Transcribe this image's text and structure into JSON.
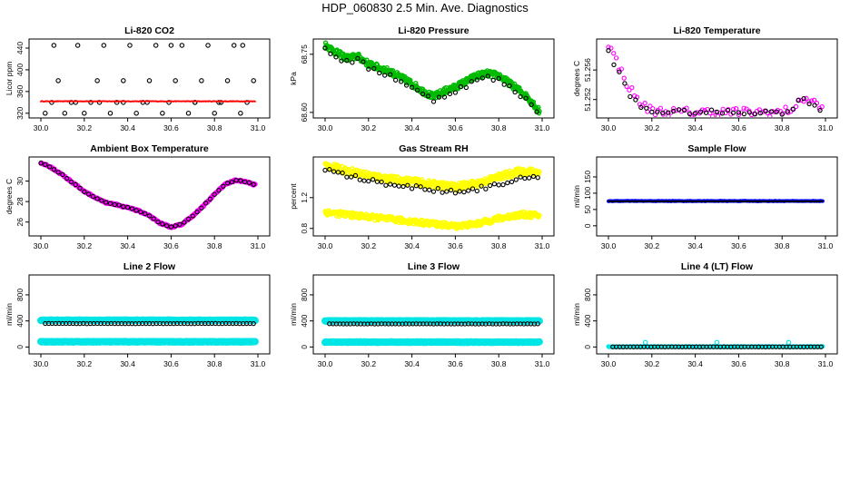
{
  "page_title": "HDP_060830  2.5 Min. Ave. Diagnostics",
  "chart_data": [
    {
      "type": "scatter",
      "title": "Li-820 CO2",
      "ylabel": "Licor ppm",
      "xlim": [
        30.0,
        31.0
      ],
      "ylim": [
        318,
        450
      ],
      "xticks": [
        "30.0",
        "30.2",
        "30.4",
        "30.6",
        "30.8",
        "31.0"
      ],
      "yticks": [
        "320",
        "360",
        "400",
        "440"
      ],
      "yrot": false,
      "series": [
        {
          "name": "raw",
          "color": "#000000",
          "kind": "open",
          "x": [
            30.02,
            30.05,
            30.08,
            30.11,
            30.14,
            30.17,
            30.2,
            30.23,
            30.26,
            30.29,
            30.32,
            30.35,
            30.38,
            30.41,
            30.44,
            30.47,
            30.5,
            30.53,
            30.56,
            30.59,
            30.62,
            30.65,
            30.68,
            30.71,
            30.74,
            30.77,
            30.8,
            30.83,
            30.86,
            30.89,
            30.92,
            30.95,
            30.98,
            30.06,
            30.16,
            30.27,
            30.38,
            30.49,
            30.6,
            30.71,
            30.82,
            30.93
          ],
          "y": [
            320,
            340,
            380,
            320,
            340,
            445,
            320,
            340,
            380,
            445,
            320,
            340,
            380,
            445,
            320,
            340,
            380,
            445,
            320,
            340,
            380,
            445,
            320,
            340,
            380,
            445,
            320,
            340,
            380,
            445,
            320,
            340,
            380,
            445,
            340,
            340,
            340,
            340,
            445,
            340,
            340,
            445
          ]
        },
        {
          "name": "mean",
          "color": "#ff0000",
          "kind": "band",
          "x": [
            30.0,
            30.99
          ],
          "y": [
            342,
            342
          ],
          "spread": 2
        }
      ]
    },
    {
      "type": "scatter",
      "title": "Li-820 Pressure",
      "ylabel": "kPa",
      "xlim": [
        30.0,
        31.0
      ],
      "ylim": [
        68.595,
        68.78
      ],
      "xticks": [
        "30.0",
        "30.2",
        "30.4",
        "30.6",
        "30.8",
        "31.0"
      ],
      "yticks": [
        "68.60",
        "68.75"
      ],
      "yrot": true,
      "series": [
        {
          "name": "fast",
          "color": "#00bb00",
          "kind": "trace",
          "noise": 0.008,
          "x": [
            30.0,
            30.05,
            30.1,
            30.15,
            30.2,
            30.25,
            30.3,
            30.35,
            30.4,
            30.45,
            30.5,
            30.55,
            30.6,
            30.65,
            30.7,
            30.75,
            30.8,
            30.85,
            30.9,
            30.95,
            30.99
          ],
          "y": [
            68.775,
            68.755,
            68.74,
            68.745,
            68.725,
            68.715,
            68.705,
            68.69,
            68.675,
            68.655,
            68.64,
            68.655,
            68.665,
            68.68,
            68.695,
            68.7,
            68.695,
            68.675,
            68.655,
            68.63,
            68.6
          ]
        },
        {
          "name": "avg",
          "color": "#000000",
          "kind": "openline",
          "noise": 0.006,
          "step": 0.025,
          "x": [
            30.0,
            30.05,
            30.1,
            30.15,
            30.2,
            30.25,
            30.3,
            30.35,
            30.4,
            30.45,
            30.5,
            30.55,
            30.6,
            30.65,
            30.7,
            30.75,
            30.8,
            30.85,
            30.9,
            30.95,
            30.99
          ],
          "y": [
            68.765,
            68.745,
            68.73,
            68.735,
            68.715,
            68.705,
            68.695,
            68.68,
            68.665,
            68.645,
            68.632,
            68.645,
            68.655,
            68.67,
            68.683,
            68.69,
            68.683,
            68.665,
            68.645,
            68.622,
            68.598
          ]
        }
      ]
    },
    {
      "type": "scatter",
      "title": "Li-820 Temperature",
      "ylabel": "degrees C",
      "xlim": [
        30.0,
        31.0
      ],
      "ylim": [
        51.25,
        51.2597
      ],
      "xticks": [
        "30.0",
        "30.2",
        "30.4",
        "30.6",
        "30.8",
        "31.0"
      ],
      "yticks": [
        "51.252",
        "51.256"
      ],
      "yrot": true,
      "series": [
        {
          "name": "fast",
          "color": "#ff00ff",
          "kind": "openline",
          "noise": 0.0006,
          "step": 0.012,
          "x": [
            30.0,
            30.04,
            30.08,
            30.12,
            30.16,
            30.2,
            30.3,
            30.4,
            30.5,
            30.6,
            30.7,
            30.8,
            30.84,
            30.87,
            30.9,
            30.93,
            30.96,
            30.99
          ],
          "y": [
            51.2595,
            51.257,
            51.2545,
            51.2525,
            51.2512,
            51.2505,
            51.2503,
            51.2503,
            51.2503,
            51.2503,
            51.2503,
            51.2503,
            51.2507,
            51.2512,
            51.2522,
            51.252,
            51.2513,
            51.2506
          ]
        },
        {
          "name": "avg",
          "color": "#000000",
          "kind": "openline",
          "noise": 0.0003,
          "step": 0.025,
          "x": [
            30.0,
            30.05,
            30.1,
            30.15,
            30.2,
            30.4,
            30.6,
            30.8,
            30.85,
            30.88,
            30.91,
            30.95,
            30.99
          ],
          "y": [
            51.2585,
            51.2555,
            51.2525,
            51.251,
            51.2504,
            51.2503,
            51.2503,
            51.2503,
            51.2505,
            51.2525,
            51.252,
            51.251,
            51.2504
          ]
        }
      ]
    },
    {
      "type": "scatter",
      "title": "Ambient Box Temperature",
      "ylabel": "degrees C",
      "xlim": [
        30.0,
        31.0
      ],
      "ylim": [
        25.0,
        32.0
      ],
      "xticks": [
        "30.0",
        "30.2",
        "30.4",
        "30.6",
        "30.8",
        "31.0"
      ],
      "yticks": [
        "26",
        "28",
        "30"
      ],
      "yrot": true,
      "series": [
        {
          "name": "fast",
          "color": "#ff00ff",
          "kind": "trace",
          "noise": 0.08,
          "x": [
            30.0,
            30.05,
            30.1,
            30.15,
            30.2,
            30.25,
            30.3,
            30.35,
            30.4,
            30.45,
            30.5,
            30.55,
            30.6,
            30.65,
            30.7,
            30.75,
            30.8,
            30.85,
            30.9,
            30.95,
            30.99
          ],
          "y": [
            31.8,
            31.3,
            30.6,
            29.8,
            29.0,
            28.4,
            27.9,
            27.7,
            27.4,
            27.1,
            26.6,
            25.9,
            25.5,
            25.8,
            26.6,
            27.6,
            28.7,
            29.7,
            30.1,
            29.9,
            29.6
          ]
        },
        {
          "name": "avg",
          "color": "#000000",
          "kind": "openline",
          "noise": 0.04,
          "step": 0.02,
          "x": [
            30.0,
            30.05,
            30.1,
            30.15,
            30.2,
            30.25,
            30.3,
            30.35,
            30.4,
            30.45,
            30.5,
            30.55,
            30.6,
            30.65,
            30.7,
            30.75,
            30.8,
            30.85,
            30.9,
            30.95,
            30.99
          ],
          "y": [
            31.8,
            31.3,
            30.6,
            29.8,
            29.0,
            28.4,
            27.9,
            27.7,
            27.4,
            27.1,
            26.6,
            25.9,
            25.5,
            25.8,
            26.6,
            27.6,
            28.7,
            29.7,
            30.1,
            29.9,
            29.6
          ]
        }
      ]
    },
    {
      "type": "scatter",
      "title": "Gas Stream RH",
      "ylabel": "percent",
      "xlim": [
        30.0,
        31.0
      ],
      "ylim": [
        0.75,
        1.68
      ],
      "xticks": [
        "30.0",
        "30.2",
        "30.4",
        "30.6",
        "30.8",
        "31.0"
      ],
      "yticks": [
        "0.8",
        "1.2"
      ],
      "yrot": true,
      "series": [
        {
          "name": "fast-high",
          "color": "#ffff00",
          "kind": "trace",
          "noise": 0.045,
          "x": [
            30.0,
            30.1,
            30.2,
            30.3,
            30.4,
            30.5,
            30.6,
            30.7,
            30.8,
            30.9,
            30.99
          ],
          "y": [
            1.62,
            1.55,
            1.49,
            1.44,
            1.41,
            1.37,
            1.34,
            1.38,
            1.47,
            1.54,
            1.53
          ]
        },
        {
          "name": "fast-low",
          "color": "#ffff00",
          "kind": "trace",
          "noise": 0.035,
          "x": [
            30.0,
            30.1,
            30.2,
            30.3,
            30.4,
            30.5,
            30.6,
            30.7,
            30.8,
            30.9,
            30.99
          ],
          "y": [
            1.01,
            0.98,
            0.95,
            0.92,
            0.89,
            0.86,
            0.83,
            0.86,
            0.93,
            0.98,
            0.97
          ]
        },
        {
          "name": "avg",
          "color": "#000000",
          "kind": "openline",
          "noise": 0.03,
          "step": 0.02,
          "x": [
            30.0,
            30.1,
            30.2,
            30.3,
            30.4,
            30.5,
            30.6,
            30.7,
            30.8,
            30.9,
            30.99
          ],
          "y": [
            1.56,
            1.49,
            1.42,
            1.38,
            1.34,
            1.3,
            1.28,
            1.31,
            1.38,
            1.44,
            1.45
          ]
        }
      ]
    },
    {
      "type": "scatter",
      "title": "Sample Flow",
      "ylabel": "ml/min",
      "xlim": [
        30.0,
        31.0
      ],
      "ylim": [
        -20,
        200
      ],
      "xticks": [
        "30.0",
        "30.2",
        "30.4",
        "30.6",
        "30.8",
        "31.0"
      ],
      "yticks": [
        "0",
        "50",
        "100",
        "150"
      ],
      "yrot": true,
      "series": [
        {
          "name": "fast",
          "color": "#0000ff",
          "kind": "band",
          "x": [
            30.0,
            30.99
          ],
          "y": [
            76,
            76
          ],
          "spread": 4
        },
        {
          "name": "avg",
          "color": "#000000",
          "kind": "band",
          "x": [
            30.0,
            30.99
          ],
          "y": [
            75,
            75
          ],
          "spread": 2
        }
      ]
    },
    {
      "type": "scatter",
      "title": "Line 2 Flow",
      "ylabel": "ml/min",
      "xlim": [
        30.0,
        31.0
      ],
      "ylim": [
        -50,
        1050
      ],
      "xticks": [
        "30.0",
        "30.2",
        "30.4",
        "30.6",
        "30.8",
        "31.0"
      ],
      "yticks": [
        "0",
        "400",
        "800"
      ],
      "yrot": true,
      "series": [
        {
          "name": "fast-high",
          "color": "#00e5e5",
          "kind": "band",
          "x": [
            30.0,
            30.99
          ],
          "y": [
            410,
            410
          ],
          "spread": 8
        },
        {
          "name": "fast-low",
          "color": "#00e5e5",
          "kind": "band",
          "x": [
            30.0,
            30.99
          ],
          "y": [
            80,
            80
          ],
          "spread": 8
        },
        {
          "name": "avg",
          "color": "#000000",
          "kind": "openline",
          "noise": 2,
          "step": 0.016,
          "x": [
            30.02,
            30.99
          ],
          "y": [
            360,
            360
          ]
        }
      ]
    },
    {
      "type": "scatter",
      "title": "Line 3 Flow",
      "ylabel": "ml/min",
      "xlim": [
        30.0,
        31.0
      ],
      "ylim": [
        -50,
        1050
      ],
      "xticks": [
        "30.0",
        "30.2",
        "30.4",
        "30.6",
        "30.8",
        "31.0"
      ],
      "yticks": [
        "0",
        "400",
        "800"
      ],
      "yrot": true,
      "series": [
        {
          "name": "fast-high",
          "color": "#00e5e5",
          "kind": "band",
          "x": [
            30.0,
            30.99
          ],
          "y": [
            400,
            400
          ],
          "spread": 8
        },
        {
          "name": "fast-low",
          "color": "#00e5e5",
          "kind": "band",
          "x": [
            30.0,
            30.99
          ],
          "y": [
            75,
            75
          ],
          "spread": 8
        },
        {
          "name": "avg",
          "color": "#000000",
          "kind": "openline",
          "noise": 2,
          "step": 0.016,
          "x": [
            30.02,
            30.99
          ],
          "y": [
            355,
            355
          ]
        }
      ]
    },
    {
      "type": "scatter",
      "title": "Line 4 (LT) Flow",
      "ylabel": "ml/min",
      "xlim": [
        30.0,
        31.0
      ],
      "ylim": [
        -50,
        1050
      ],
      "xticks": [
        "30.0",
        "30.2",
        "30.4",
        "30.6",
        "30.8",
        "31.0"
      ],
      "yticks": [
        "0",
        "400",
        "800"
      ],
      "yrot": true,
      "series": [
        {
          "name": "fast",
          "color": "#00e5e5",
          "kind": "band",
          "x": [
            30.0,
            30.99
          ],
          "y": [
            5,
            5
          ],
          "spread": 5
        },
        {
          "name": "spikes",
          "color": "#00e5e5",
          "kind": "open",
          "x": [
            30.17,
            30.5,
            30.83
          ],
          "y": [
            70,
            70,
            70
          ]
        },
        {
          "name": "avg",
          "color": "#000000",
          "kind": "openline",
          "noise": 1,
          "step": 0.016,
          "x": [
            30.02,
            30.99
          ],
          "y": [
            2,
            2
          ]
        }
      ]
    }
  ]
}
